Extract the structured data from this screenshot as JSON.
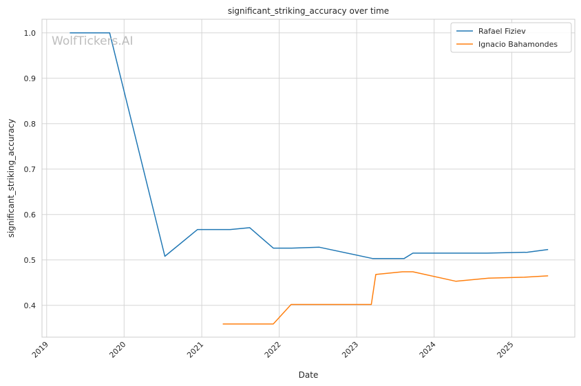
{
  "watermark": "WolfTickers.AI",
  "chart_data": {
    "type": "line",
    "title": "significant_striking_accuracy over time",
    "xlabel": "Date",
    "ylabel": "significant_striking_accuracy",
    "x_ticks": [
      "2019",
      "2020",
      "2021",
      "2022",
      "2023",
      "2024",
      "2025"
    ],
    "y_ticks": [
      "0.4",
      "0.5",
      "0.6",
      "0.7",
      "0.8",
      "0.9",
      "1.0"
    ],
    "xlim": [
      "2018-12-10",
      "2025-10-25"
    ],
    "ylim": [
      0.33,
      1.03
    ],
    "grid": true,
    "legend_position": "top-right",
    "series": [
      {
        "name": "Rafael Fiziev",
        "color": "#1f77b4",
        "points": [
          {
            "x": "2019-04-20",
            "y": 1.0
          },
          {
            "x": "2019-10-25",
            "y": 1.0
          },
          {
            "x": "2020-07-11",
            "y": 0.508
          },
          {
            "x": "2020-12-12",
            "y": 0.567
          },
          {
            "x": "2021-05-15",
            "y": 0.567
          },
          {
            "x": "2021-08-15",
            "y": 0.571
          },
          {
            "x": "2021-12-04",
            "y": 0.526
          },
          {
            "x": "2022-03-01",
            "y": 0.526
          },
          {
            "x": "2022-07-09",
            "y": 0.528
          },
          {
            "x": "2023-03-18",
            "y": 0.503
          },
          {
            "x": "2023-08-12",
            "y": 0.503
          },
          {
            "x": "2023-09-23",
            "y": 0.515
          },
          {
            "x": "2024-03-01",
            "y": 0.515
          },
          {
            "x": "2024-09-07",
            "y": 0.515
          },
          {
            "x": "2025-03-15",
            "y": 0.517
          },
          {
            "x": "2025-06-21",
            "y": 0.523
          }
        ]
      },
      {
        "name": "Ignacio Bahamondes",
        "color": "#ff7f0e",
        "points": [
          {
            "x": "2021-04-10",
            "y": 0.359
          },
          {
            "x": "2021-12-04",
            "y": 0.359
          },
          {
            "x": "2022-02-26",
            "y": 0.402
          },
          {
            "x": "2022-07-01",
            "y": 0.402
          },
          {
            "x": "2023-03-11",
            "y": 0.402
          },
          {
            "x": "2023-04-01",
            "y": 0.468
          },
          {
            "x": "2023-08-05",
            "y": 0.474
          },
          {
            "x": "2023-09-23",
            "y": 0.474
          },
          {
            "x": "2024-04-13",
            "y": 0.453
          },
          {
            "x": "2024-09-14",
            "y": 0.46
          },
          {
            "x": "2025-03-01",
            "y": 0.462
          },
          {
            "x": "2025-06-21",
            "y": 0.465
          }
        ]
      }
    ]
  }
}
